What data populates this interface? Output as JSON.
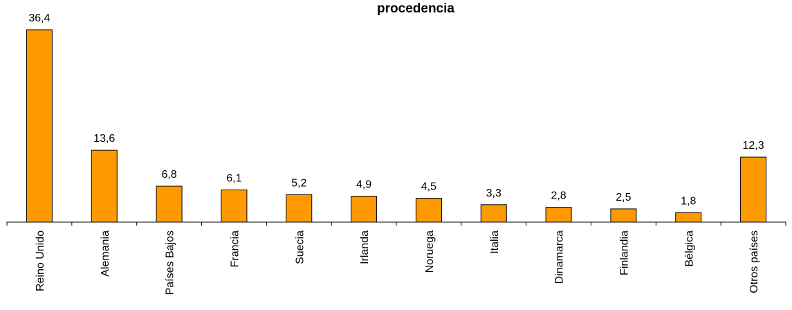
{
  "chart_data": {
    "type": "bar",
    "title": "procedencia",
    "categories": [
      "Reino Unido",
      "Alemania",
      "Países Bajos",
      "Francia",
      "Suecia",
      "Irlanda",
      "Noruega",
      "Italia",
      "Dinamarca",
      "Finlandia",
      "Bélgica",
      "Otros países"
    ],
    "values": [
      36.4,
      13.6,
      6.8,
      6.1,
      5.2,
      4.9,
      4.5,
      3.3,
      2.8,
      2.5,
      1.8,
      12.3
    ],
    "value_labels": [
      "36,4",
      "13,6",
      "6,8",
      "6,1",
      "5,2",
      "4,9",
      "4,5",
      "3,3",
      "2,8",
      "2,5",
      "1,8",
      "12,3"
    ],
    "xlabel": "",
    "ylabel": "",
    "ylim": [
      0,
      36.4
    ],
    "grid": false,
    "legend": "none",
    "colors": {
      "bar_fill": "#FF9900",
      "bar_stroke": "#000000",
      "axis": "#000000"
    }
  }
}
